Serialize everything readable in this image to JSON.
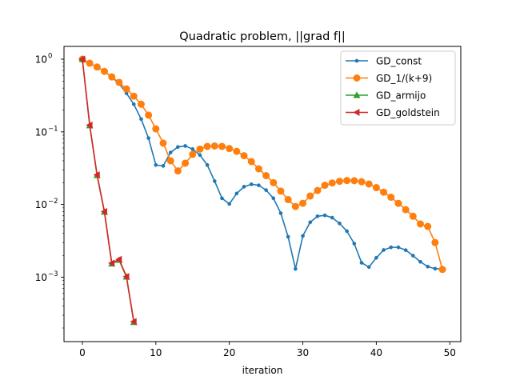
{
  "chart_data": {
    "type": "line",
    "title": "Quadratic problem, ||grad f||",
    "xlabel": "iteration",
    "ylabel": "",
    "yscale": "log",
    "xlim": [
      -2.5,
      51.5
    ],
    "ylim": [
      0.00013,
      1.5
    ],
    "xticks": [
      0,
      10,
      20,
      30,
      40,
      50
    ],
    "xtick_labels": [
      "0",
      "10",
      "20",
      "30",
      "40",
      "50"
    ],
    "yticks": [
      0.001,
      0.01,
      0.1,
      1
    ],
    "ytick_labels": [
      "10",
      "10",
      "10",
      "10"
    ],
    "ytick_exponents": [
      "−3",
      "−2",
      "−1",
      "0"
    ],
    "grid": false,
    "legend_position": "top-right",
    "series": [
      {
        "name": "GD_const",
        "color": "#1f77b4",
        "marker": "point",
        "x": [
          0,
          1,
          2,
          3,
          4,
          5,
          6,
          7,
          8,
          9,
          10,
          11,
          12,
          13,
          14,
          15,
          16,
          17,
          18,
          19,
          20,
          21,
          22,
          23,
          24,
          25,
          26,
          27,
          28,
          29,
          30,
          31,
          32,
          33,
          34,
          35,
          36,
          37,
          38,
          39,
          40,
          41,
          42,
          43,
          44,
          45,
          46,
          47,
          48,
          49
        ],
        "y": [
          1.0,
          0.88,
          0.78,
          0.68,
          0.57,
          0.46,
          0.34,
          0.24,
          0.15,
          0.082,
          0.035,
          0.034,
          0.052,
          0.062,
          0.064,
          0.058,
          0.048,
          0.035,
          0.021,
          0.0122,
          0.0102,
          0.0142,
          0.0176,
          0.019,
          0.0184,
          0.0158,
          0.0122,
          0.0076,
          0.0036,
          0.0013,
          0.0037,
          0.0057,
          0.0069,
          0.0071,
          0.0066,
          0.0055,
          0.0043,
          0.0029,
          0.00158,
          0.00138,
          0.00185,
          0.00237,
          0.00258,
          0.00258,
          0.00236,
          0.00198,
          0.00163,
          0.0014,
          0.00131,
          0.00129
        ]
      },
      {
        "name": "GD_1/(k+9)",
        "color": "#ff7f0e",
        "marker": "circle",
        "x": [
          0,
          1,
          2,
          3,
          4,
          5,
          6,
          7,
          8,
          9,
          10,
          11,
          12,
          13,
          14,
          15,
          16,
          17,
          18,
          19,
          20,
          21,
          22,
          23,
          24,
          25,
          26,
          27,
          28,
          29,
          30,
          31,
          32,
          33,
          34,
          35,
          36,
          37,
          38,
          39,
          40,
          41,
          42,
          43,
          44,
          45,
          46,
          47,
          48,
          49
        ],
        "y": [
          1.0,
          0.88,
          0.78,
          0.68,
          0.57,
          0.48,
          0.39,
          0.31,
          0.24,
          0.17,
          0.11,
          0.07,
          0.04,
          0.029,
          0.037,
          0.049,
          0.058,
          0.063,
          0.064,
          0.063,
          0.059,
          0.054,
          0.047,
          0.039,
          0.031,
          0.025,
          0.02,
          0.0153,
          0.0117,
          0.0094,
          0.0104,
          0.0131,
          0.0156,
          0.0184,
          0.0198,
          0.0209,
          0.0214,
          0.0213,
          0.0206,
          0.0192,
          0.0171,
          0.0148,
          0.0126,
          0.0104,
          0.0085,
          0.0069,
          0.0054,
          0.005,
          0.003,
          0.00128
        ]
      },
      {
        "name": "GD_armijo",
        "color": "#2ca02c",
        "marker": "triangle-up",
        "x": [
          0,
          1,
          2,
          3,
          4,
          5,
          6,
          7
        ],
        "y": [
          1.0,
          0.122,
          0.0252,
          0.0079,
          0.00153,
          0.00172,
          0.00101,
          0.00024
        ]
      },
      {
        "name": "GD_goldstein",
        "color": "#d62728",
        "marker": "triangle-left",
        "x": [
          0,
          1,
          2,
          3,
          4,
          5,
          6,
          7
        ],
        "y": [
          1.0,
          0.124,
          0.0256,
          0.008,
          0.00156,
          0.00176,
          0.00102,
          0.000245
        ]
      }
    ]
  }
}
